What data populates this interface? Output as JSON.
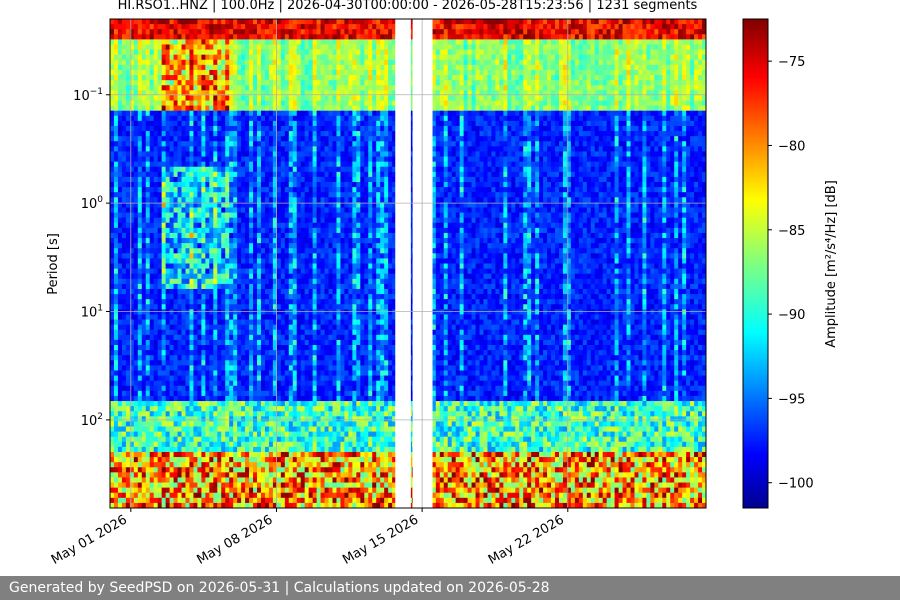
{
  "footer": {
    "text": "Generated by SeedPSD on 2026-05-31 | Calculations updated on 2026-05-28"
  },
  "chart_data": {
    "type": "heatmap",
    "title": "HI.RSO1..HNZ | 100.0Hz | 2026-04-30T00:00:00 - 2026-05-28T15:23:56 | 1231 segments",
    "xlabel": "",
    "ylabel": "Period [s]",
    "y_scale": "log",
    "y_inverted": true,
    "x_ticks": [
      "May 01 2026",
      "May 08 2026",
      "May 15 2026",
      "May 22 2026"
    ],
    "x_tick_dates": [
      "2026-05-01",
      "2026-05-08",
      "2026-05-15",
      "2026-05-22"
    ],
    "xlim": [
      "2026-04-30",
      "2026-05-28T15:23:56"
    ],
    "y_ticks": [
      0.1,
      1,
      10,
      100
    ],
    "y_tick_labels": [
      {
        "base": "10",
        "exp": "−1"
      },
      {
        "base": "10",
        "exp": "0"
      },
      {
        "base": "10",
        "exp": "1"
      },
      {
        "base": "10",
        "exp": "2"
      }
    ],
    "ylim": [
      0.02,
      650
    ],
    "grid": true,
    "data_gaps": [
      [
        "2026-05-13T17:00:00",
        "2026-05-14T11:00:00"
      ],
      [
        "2026-05-14T13:00:00",
        "2026-05-15T12:00:00"
      ]
    ],
    "colorbar": {
      "label": "Amplitude [m²/s⁴/Hz] [dB]",
      "ticks": [
        -75,
        -80,
        -85,
        -90,
        -95,
        -100
      ],
      "tick_labels": [
        "−75",
        "−80",
        "−85",
        "−90",
        "−95",
        "−100"
      ],
      "range": [
        -101.5,
        -72.5
      ],
      "colormap": "jet"
    }
  }
}
